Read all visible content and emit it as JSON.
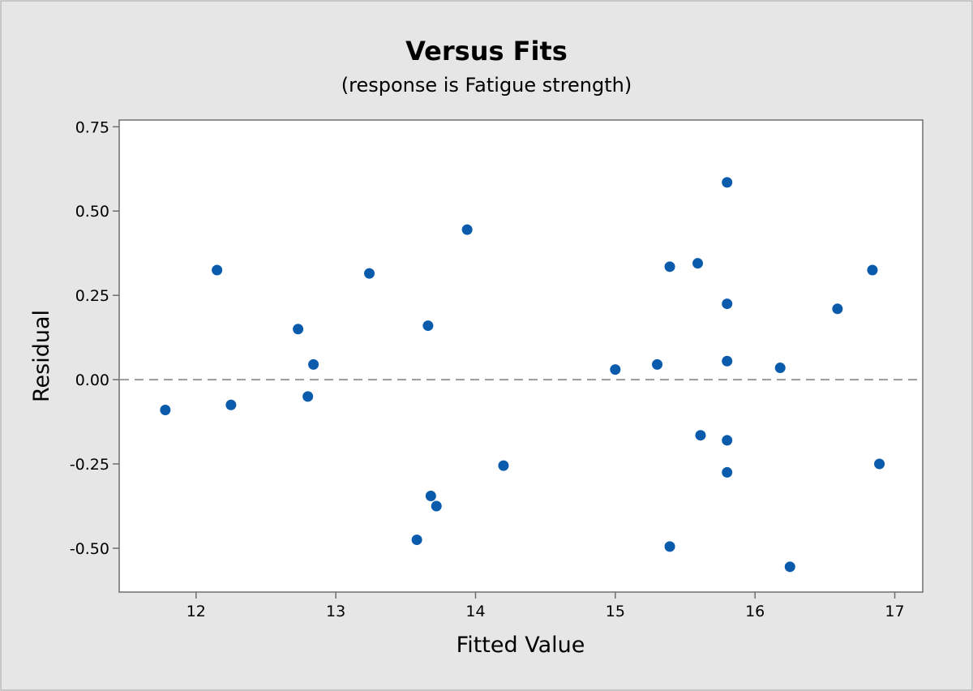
{
  "chart_data": {
    "type": "scatter",
    "title": "Versus Fits",
    "subtitle": "(response is Fatigue strength)",
    "xlabel": "Fitted Value",
    "ylabel": "Residual",
    "xlim": [
      11.45,
      17.2
    ],
    "ylim": [
      -0.63,
      0.77
    ],
    "xticks": [
      12,
      13,
      14,
      15,
      16,
      17
    ],
    "xtick_labels": [
      "12",
      "13",
      "14",
      "15",
      "16",
      "17"
    ],
    "yticks": [
      0.75,
      0.5,
      0.25,
      0.0,
      -0.25,
      -0.5
    ],
    "ytick_labels": [
      "0.75",
      "0.50",
      "0.25",
      "0.00",
      "-0.25",
      "-0.50"
    ],
    "reference_line": 0.0,
    "grid": false,
    "colors": {
      "figure_background": "#e6e6e6",
      "plot_background": "#ffffff",
      "point": "#0b5bad",
      "reference_line": "#9a9a9a",
      "axis": "#6e6e6e"
    },
    "points": [
      {
        "x": 11.78,
        "y": -0.09
      },
      {
        "x": 12.15,
        "y": 0.325
      },
      {
        "x": 12.25,
        "y": -0.075
      },
      {
        "x": 12.73,
        "y": 0.15
      },
      {
        "x": 12.8,
        "y": -0.05
      },
      {
        "x": 12.84,
        "y": 0.045
      },
      {
        "x": 13.24,
        "y": 0.315
      },
      {
        "x": 13.58,
        "y": -0.475
      },
      {
        "x": 13.66,
        "y": 0.16
      },
      {
        "x": 13.68,
        "y": -0.345
      },
      {
        "x": 13.72,
        "y": -0.375
      },
      {
        "x": 13.94,
        "y": 0.445
      },
      {
        "x": 14.2,
        "y": -0.255
      },
      {
        "x": 15.0,
        "y": 0.03
      },
      {
        "x": 15.3,
        "y": 0.045
      },
      {
        "x": 15.39,
        "y": 0.335
      },
      {
        "x": 15.39,
        "y": -0.495
      },
      {
        "x": 15.59,
        "y": 0.345
      },
      {
        "x": 15.61,
        "y": -0.165
      },
      {
        "x": 15.8,
        "y": 0.585
      },
      {
        "x": 15.8,
        "y": 0.225
      },
      {
        "x": 15.8,
        "y": 0.055
      },
      {
        "x": 15.8,
        "y": -0.18
      },
      {
        "x": 15.8,
        "y": -0.275
      },
      {
        "x": 16.18,
        "y": 0.035
      },
      {
        "x": 16.25,
        "y": -0.555
      },
      {
        "x": 16.59,
        "y": 0.21
      },
      {
        "x": 16.84,
        "y": 0.325
      },
      {
        "x": 16.89,
        "y": -0.25
      }
    ]
  }
}
